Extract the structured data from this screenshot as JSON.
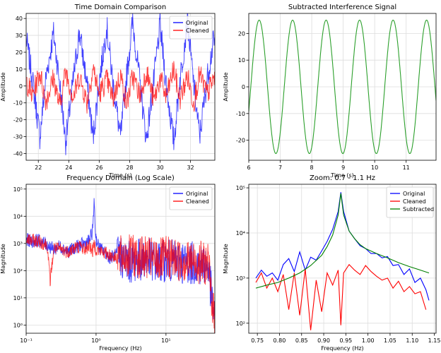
{
  "chart_data": [
    {
      "type": "line",
      "title": "Time Domain Comparison",
      "xlabel": "Time (s)",
      "ylabel": "Amplitude",
      "xlim": [
        21.2,
        33.6
      ],
      "ylim": [
        -44,
        43
      ],
      "xticks": [
        "22",
        "24",
        "26",
        "28",
        "30",
        "32"
      ],
      "yticks": [
        "-40",
        "-30",
        "-20",
        "-10",
        "0",
        "10",
        "20",
        "30",
        "40"
      ],
      "grid": true,
      "legend": "top-right",
      "series": [
        {
          "name": "Original",
          "color": "#0000ff",
          "description_range": [
            -35,
            41
          ],
          "x": [
            21.2,
            21.6,
            22.1,
            22.5,
            23.0,
            23.4,
            23.8,
            24.3,
            24.7,
            25.2,
            25.6,
            26.0,
            26.5,
            26.9,
            27.4,
            27.8,
            28.2,
            28.7,
            29.1,
            29.6,
            30.0,
            30.4,
            30.9,
            31.3,
            31.8,
            32.2,
            32.6,
            33.1,
            33.5
          ],
          "y": [
            28,
            5,
            -30,
            5,
            31,
            2,
            -33,
            4,
            32,
            1,
            -31,
            3,
            35,
            2,
            -31,
            6,
            38,
            0,
            -32,
            4,
            36,
            1,
            -33,
            3,
            39,
            2,
            -30,
            5,
            26
          ]
        },
        {
          "name": "Cleaned",
          "color": "#ff0000",
          "x": [
            21.2,
            21.6,
            22.1,
            22.5,
            23.0,
            23.4,
            23.8,
            24.3,
            24.7,
            25.2,
            25.6,
            26.0,
            26.5,
            26.9,
            27.4,
            27.8,
            28.2,
            28.7,
            29.1,
            29.6,
            30.0,
            30.4,
            30.9,
            31.3,
            31.8,
            32.2,
            32.6,
            33.1,
            33.5
          ],
          "y": [
            3,
            -6,
            8,
            -9,
            5,
            -12,
            9,
            -7,
            6,
            -10,
            11,
            -5,
            4,
            -8,
            7,
            -11,
            6,
            -6,
            9,
            -9,
            5,
            -7,
            10,
            -8,
            6,
            -10,
            7,
            -5,
            4
          ]
        }
      ]
    },
    {
      "type": "line",
      "title": "Subtracted Interference Signal",
      "xlabel": "Time (s)",
      "ylabel": "Amplitude",
      "xlim": [
        6.0,
        11.95
      ],
      "ylim": [
        -27.5,
        27.5
      ],
      "xticks": [
        "6",
        "7",
        "8",
        "9",
        "10",
        "11"
      ],
      "yticks": [
        "-20",
        "-10",
        "0",
        "10",
        "20"
      ],
      "grid": true,
      "series": [
        {
          "name": "",
          "color": "#2ca02c",
          "function": "sine",
          "amplitude": 25,
          "frequency_hz": 0.94,
          "peak_at": 6.33
        }
      ]
    },
    {
      "type": "line",
      "title": "Frequency Domain (Log Scale)",
      "xlabel": "Frequency (Hz)",
      "ylabel": "Magnitude",
      "xscale": "log",
      "yscale": "log",
      "xlim": [
        0.1,
        50
      ],
      "ylim": [
        0.5,
        150000
      ],
      "xticks": [
        "10⁻¹",
        "10⁰",
        "10¹"
      ],
      "yticks": [
        "10⁰",
        "10¹",
        "10²",
        "10³",
        "10⁴",
        "10⁵"
      ],
      "grid": true,
      "legend": "top-right",
      "series": [
        {
          "name": "Original",
          "color": "#0000ff",
          "x": [
            0.1,
            0.12,
            0.15,
            0.2,
            0.25,
            0.3,
            0.4,
            0.5,
            0.6,
            0.7,
            0.8,
            0.88,
            0.92,
            0.94,
            0.96,
            1.0,
            1.1,
            1.3,
            1.6,
            2.0,
            3.0,
            5.0,
            8.0,
            10.0,
            15.0,
            20.0,
            30.0,
            40.0,
            50.0
          ],
          "y": [
            1400,
            1200,
            1300,
            900,
            600,
            800,
            500,
            700,
            900,
            1000,
            1300,
            2500,
            8000,
            75000,
            6000,
            1500,
            700,
            500,
            300,
            400,
            200,
            300,
            200,
            250,
            200,
            200,
            180,
            150,
            1
          ]
        },
        {
          "name": "Cleaned",
          "color": "#ff0000",
          "x": [
            0.1,
            0.12,
            0.15,
            0.2,
            0.22,
            0.25,
            0.3,
            0.4,
            0.5,
            0.6,
            0.7,
            0.8,
            0.9,
            0.94,
            1.0,
            1.2,
            1.5,
            2.0,
            3.0,
            5.0,
            8.0,
            10.0,
            15.0,
            20.0,
            30.0,
            40.0,
            50.0
          ],
          "y": [
            1400,
            1300,
            1200,
            900,
            40,
            700,
            600,
            500,
            700,
            800,
            600,
            900,
            500,
            1000,
            600,
            500,
            400,
            300,
            350,
            300,
            250,
            300,
            250,
            220,
            200,
            180,
            1
          ]
        }
      ]
    },
    {
      "type": "line",
      "title": "Zoom: 0.7 - 1.1 Hz",
      "xlabel": "Frequency (Hz)",
      "ylabel": "Magnitude",
      "yscale": "log",
      "xlim": [
        0.7306,
        1.1539
      ],
      "ylim": [
        60,
        120000
      ],
      "xticks": [
        "0.75",
        "0.80",
        "0.85",
        "0.90",
        "0.95",
        "1.00",
        "1.05",
        "1.10",
        "1.15"
      ],
      "yticks": [
        "10²",
        "10³",
        "10⁴",
        "10⁵"
      ],
      "grid": true,
      "legend": "top-right",
      "series": [
        {
          "name": "Original",
          "color": "#0000ff",
          "x": [
            0.7466,
            0.759,
            0.7714,
            0.7838,
            0.7962,
            0.8086,
            0.821,
            0.8334,
            0.8458,
            0.8582,
            0.8706,
            0.883,
            0.8954,
            0.9078,
            0.9202,
            0.9326,
            0.9388,
            0.945,
            0.9574,
            0.9698,
            0.9822,
            0.9946,
            1.007,
            1.0194,
            1.0318,
            1.0442,
            1.0566,
            1.069,
            1.0814,
            1.0938,
            1.1062,
            1.1186,
            1.131,
            1.1379
          ],
          "y": [
            1000,
            1500,
            1100,
            1300,
            900,
            2000,
            2700,
            1400,
            3800,
            1500,
            2900,
            2500,
            4000,
            6500,
            12000,
            30000,
            80000,
            30000,
            11000,
            7500,
            5200,
            4500,
            3500,
            3500,
            2800,
            3000,
            1900,
            2000,
            1200,
            1600,
            800,
            1000,
            550,
            320
          ]
        },
        {
          "name": "Cleaned",
          "color": "#ff0000",
          "x": [
            0.7466,
            0.759,
            0.7714,
            0.7838,
            0.7962,
            0.8086,
            0.821,
            0.8334,
            0.8458,
            0.8582,
            0.8706,
            0.883,
            0.8954,
            0.9078,
            0.9202,
            0.9326,
            0.9388,
            0.945,
            0.9574,
            0.9698,
            0.9822,
            0.9946,
            1.007,
            1.0194,
            1.0318,
            1.0442,
            1.0566,
            1.069,
            1.0814,
            1.0938,
            1.1062,
            1.1186,
            1.131
          ],
          "y": [
            800,
            1300,
            600,
            1000,
            500,
            1200,
            200,
            1300,
            150,
            1600,
            70,
            900,
            180,
            1300,
            700,
            1500,
            90,
            1300,
            2000,
            1500,
            1200,
            1900,
            1400,
            1100,
            900,
            1000,
            600,
            850,
            500,
            650,
            450,
            500,
            200
          ]
        },
        {
          "name": "Subtracted",
          "color": "#008000",
          "x": [
            0.7466,
            0.7714,
            0.7962,
            0.821,
            0.8458,
            0.8706,
            0.8954,
            0.9078,
            0.9202,
            0.9326,
            0.9388,
            0.945,
            0.9574,
            0.9698,
            0.9822,
            0.9946,
            1.0194,
            1.0442,
            1.069,
            1.0938,
            1.1186,
            1.1379
          ],
          "y": [
            600,
            700,
            800,
            1000,
            1300,
            1900,
            3200,
            5000,
            9000,
            25000,
            75000,
            25000,
            11000,
            7500,
            5500,
            4500,
            3500,
            2800,
            2200,
            1800,
            1500,
            1300
          ]
        }
      ]
    }
  ]
}
